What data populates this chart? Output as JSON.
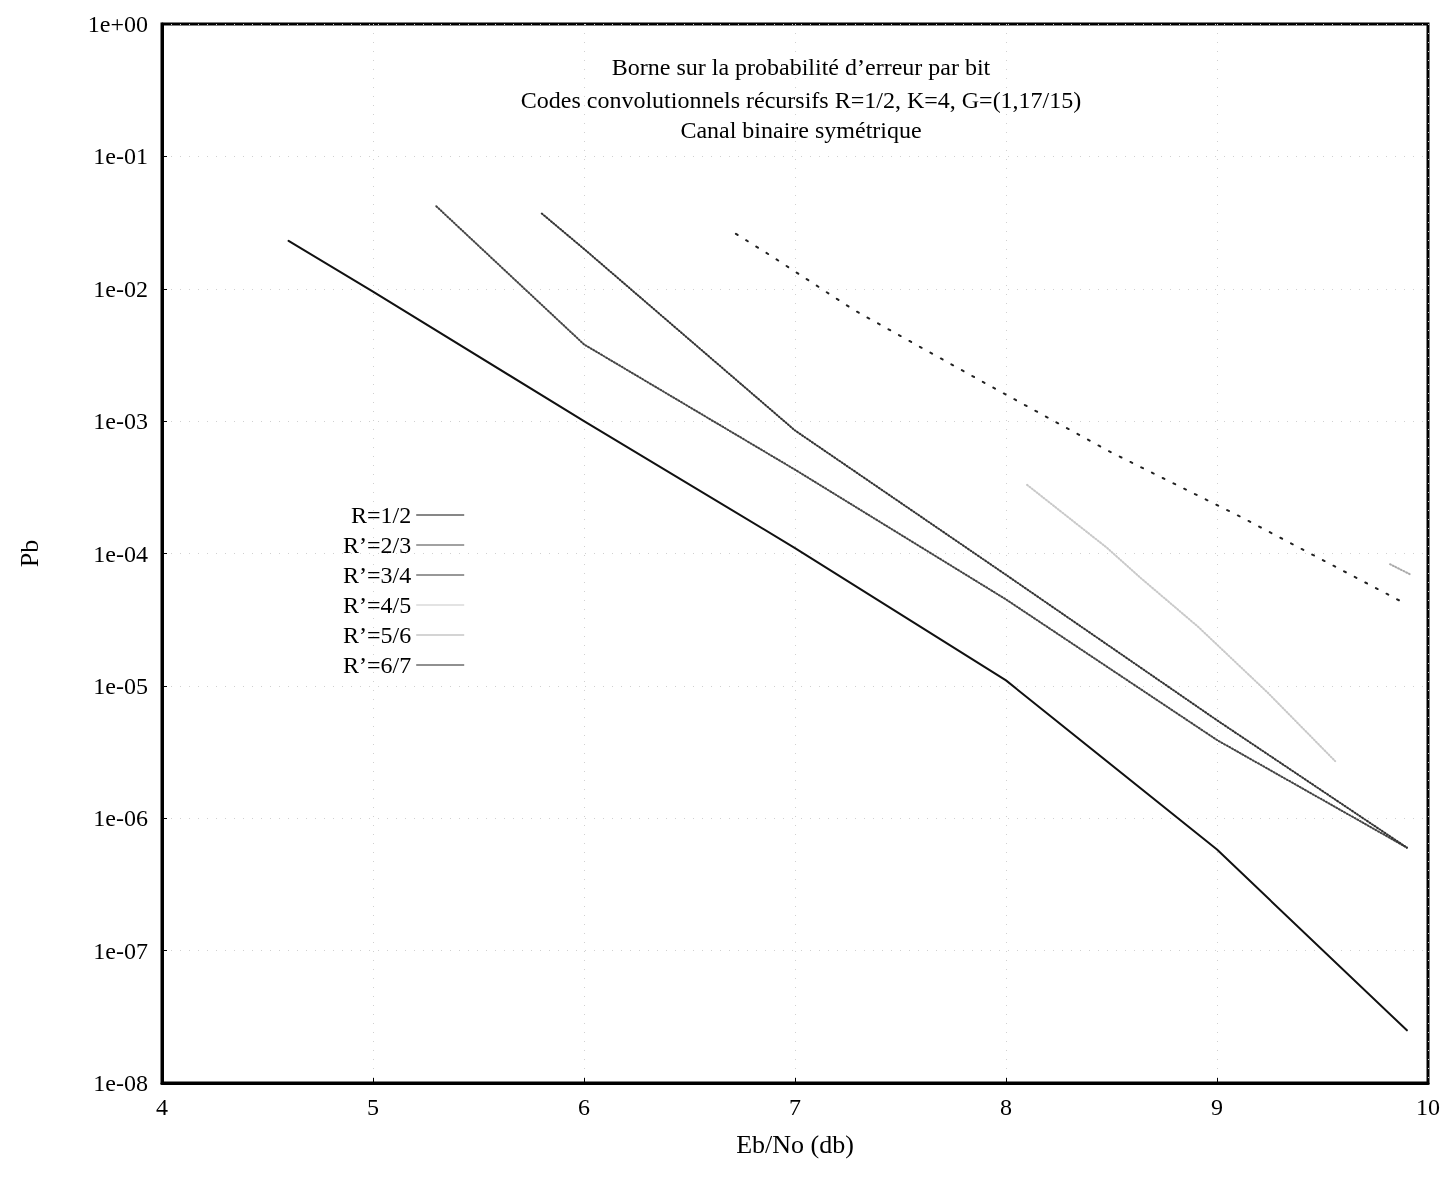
{
  "chart_data": {
    "type": "line",
    "title": "Borne sur la probabilité d’erreur par bit",
    "subtitle": "Codes convolutionnels récursifs R=1/2, K=4, G=(1,17/15)\nCanal binaire symétrique",
    "xlabel": "Eb/No (db)",
    "ylabel": "Pb",
    "log": "y",
    "grid": true,
    "legend": "left",
    "marker": "none",
    "xlim": [
      4,
      10
    ],
    "xticks": [
      4,
      5,
      6,
      7,
      8,
      9,
      10
    ],
    "ylim": [
      1e-08,
      1
    ],
    "yticks": [
      {
        "value": 1,
        "label": "1e+00"
      },
      {
        "value": 0.1,
        "label": "1e-01"
      },
      {
        "value": 0.01,
        "label": "1e-02"
      },
      {
        "value": 0.001,
        "label": "1e-03"
      },
      {
        "value": 0.0001,
        "label": "1e-04"
      },
      {
        "value": 1e-05,
        "label": "1e-05"
      },
      {
        "value": 1e-06,
        "label": "1e-06"
      },
      {
        "value": 1e-07,
        "label": "1e-07"
      },
      {
        "value": 1e-08,
        "label": "1e-08"
      }
    ],
    "series": [
      {
        "name": "R=1/2",
        "color": "#111111",
        "line_style": "solid",
        "x": [
          4.6,
          5,
          6,
          7,
          8,
          9,
          9.9
        ],
        "values": [
          0.023,
          0.0095,
          0.001,
          0.00011,
          1.1e-05,
          5.8e-07,
          2.5e-08
        ]
      },
      {
        "name": "R’=2/3",
        "color": "#444444",
        "line_style": "dotted",
        "x": [
          5.3,
          6,
          7,
          8,
          9,
          9.9
        ],
        "values": [
          0.042,
          0.0038,
          0.00043,
          4.5e-05,
          3.9e-06,
          6e-07
        ]
      },
      {
        "name": "R’=3/4",
        "color": "#333333",
        "line_style": "dotted",
        "x": [
          5.8,
          6,
          7,
          8,
          9,
          9.9
        ],
        "values": [
          0.037,
          0.02,
          0.00085,
          6.9e-05,
          5.5e-06,
          6e-07
        ]
      },
      {
        "name": "R’=4/5",
        "color": "#c8c8c8",
        "line_style": "dotted",
        "x": [
          8.1,
          8.48,
          8.64,
          8.91,
          9.24,
          9.56
        ],
        "values": [
          0.00033,
          0.00011,
          6.5e-05,
          2.8e-05,
          8.9e-06,
          2.7e-06
        ]
      },
      {
        "name": "R’=5/6",
        "color": "#aaaaaa",
        "line_style": "dotted",
        "x": [
          9.82,
          9.92
        ],
        "values": [
          8.3e-05,
          6.9e-05
        ]
      },
      {
        "name": "R’=6/7",
        "color": "#222222",
        "line_style": "dashed",
        "x": [
          6.72,
          6.88,
          7.28,
          7.91,
          8.49,
          9.11,
          9.78,
          9.89
        ],
        "values": [
          0.026,
          0.018,
          0.0069,
          0.0019,
          0.00059,
          0.00019,
          5.2e-05,
          4.2e-05
        ]
      }
    ]
  }
}
